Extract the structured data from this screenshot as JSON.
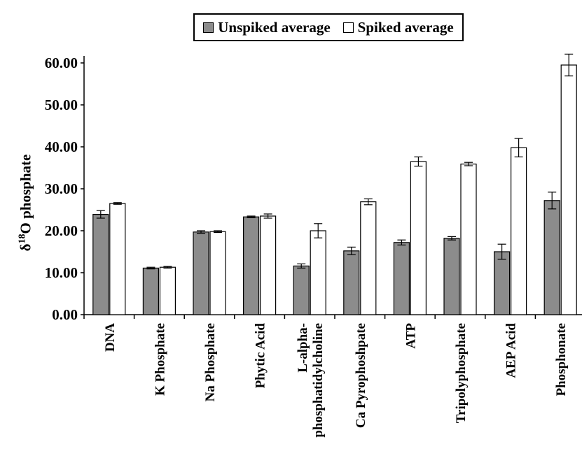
{
  "chart_data": {
    "type": "bar",
    "categories": [
      "DNA",
      "K Phosphate",
      "Na Phosphate",
      "Phytic Acid",
      "L-alpha-phosphatidylcholine",
      "Ca Pyrophoshpate",
      "ATP",
      "Tripolyphosphate",
      "AEP Acid",
      "Phosphonate"
    ],
    "category_lines": [
      [
        "DNA"
      ],
      [
        "K Phosphate"
      ],
      [
        "Na Phosphate"
      ],
      [
        "Phytic Acid"
      ],
      [
        "L-alpha-",
        "phosphatidylcholine"
      ],
      [
        "Ca Pyrophoshpate"
      ],
      [
        "ATP"
      ],
      [
        "Tripolyphosphate"
      ],
      [
        "AEP Acid"
      ],
      [
        "Phosphonate"
      ]
    ],
    "series": [
      {
        "name": "Unspiked average",
        "color": "#8c8c8c",
        "values": [
          23.9,
          11.1,
          19.7,
          23.3,
          11.6,
          15.2,
          17.2,
          18.2,
          15.0,
          27.2
        ],
        "errors": [
          0.9,
          0.2,
          0.3,
          0.2,
          0.5,
          0.9,
          0.6,
          0.4,
          1.8,
          2.0
        ]
      },
      {
        "name": "Spiked average",
        "color": "#ffffff",
        "values": [
          26.5,
          11.3,
          19.8,
          23.5,
          20.0,
          26.9,
          36.5,
          35.9,
          39.8,
          59.5
        ],
        "errors": [
          0.2,
          0.2,
          0.2,
          0.5,
          1.7,
          0.7,
          1.1,
          0.4,
          2.2,
          2.6
        ]
      }
    ],
    "ylabel_base": "δ",
    "ylabel_sup": "18",
    "ylabel_rest": "O phosphate",
    "ylim": [
      0,
      60
    ],
    "yticks": [
      0,
      10,
      20,
      30,
      40,
      50,
      60
    ],
    "ytick_labels": [
      "0.00",
      "10.00",
      "20.00",
      "30.00",
      "40.00",
      "50.00",
      "60.00"
    ],
    "grid": false,
    "legend_position": "top-center"
  }
}
